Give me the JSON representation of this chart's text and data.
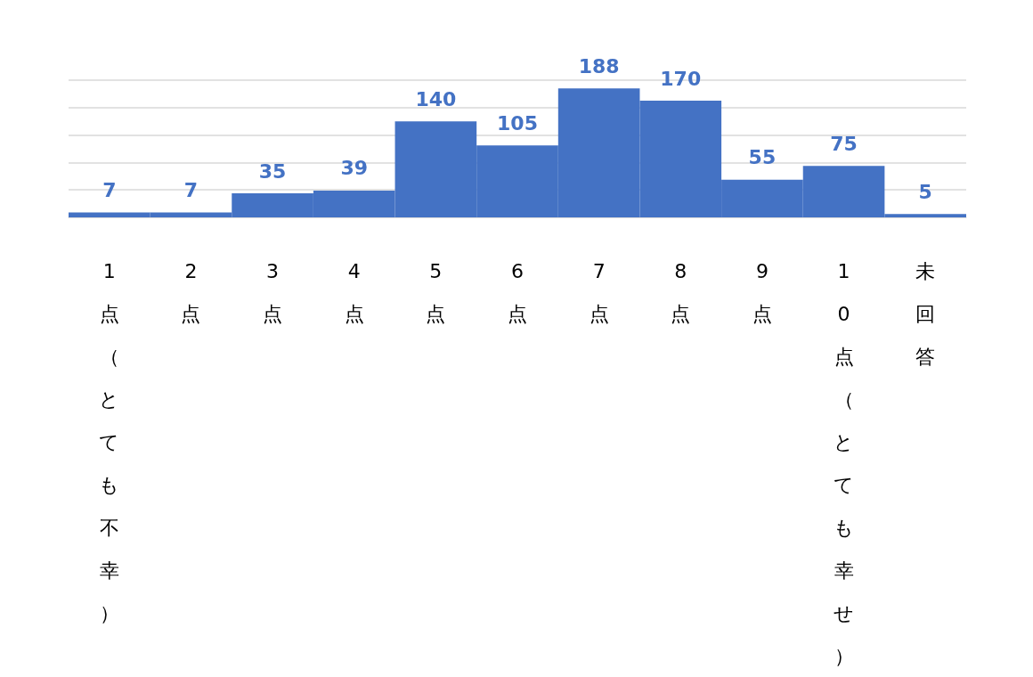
{
  "chart_data": {
    "type": "bar",
    "categories": [
      "1点（とても不幸）",
      "2点",
      "3点",
      "4点",
      "5点",
      "6点",
      "7点",
      "8点",
      "9点",
      "10点（とても幸せ）",
      "未回答"
    ],
    "values": [
      7,
      7,
      35,
      39,
      140,
      105,
      188,
      170,
      55,
      75,
      5
    ],
    "color": "#4472c4",
    "data_labels": true,
    "grid": "y",
    "tick_labels": "x",
    "ylim": [
      0,
      200
    ],
    "yticks": [
      {
        "value": 0,
        "label": null
      },
      {
        "value": 40,
        "label": null
      },
      {
        "value": 80,
        "label": null
      },
      {
        "value": 120,
        "label": null
      },
      {
        "value": 160,
        "label": null
      },
      {
        "value": 200,
        "label": null
      }
    ]
  }
}
